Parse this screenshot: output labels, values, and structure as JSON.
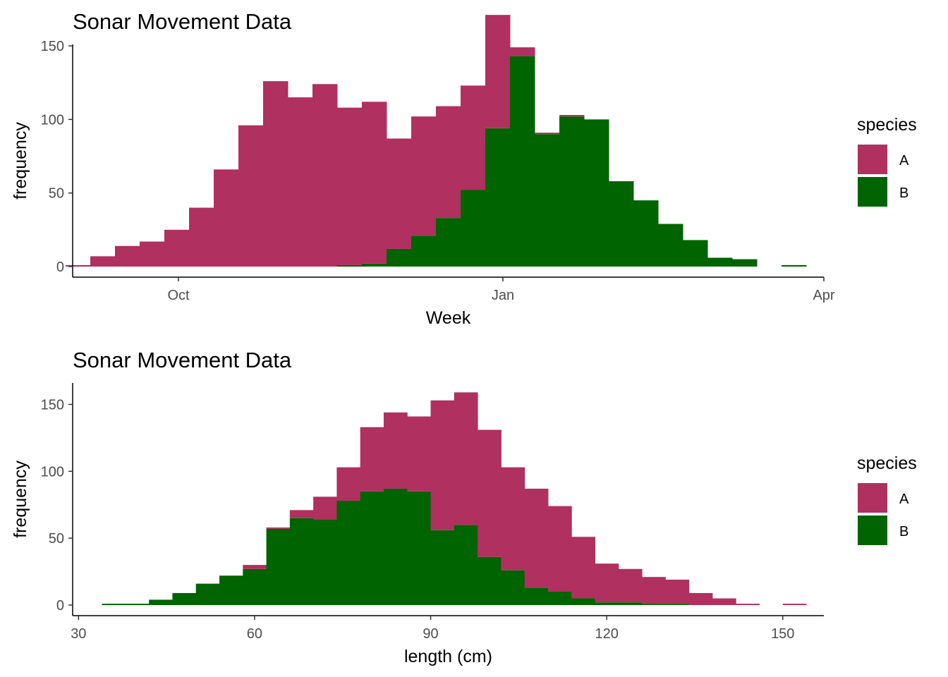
{
  "colors": {
    "A": "#b03060",
    "B": "#006400"
  },
  "chart_data": [
    {
      "type": "bar",
      "stacked": true,
      "title": "Sonar Movement Data",
      "xlabel": "Week",
      "ylabel": "frequency",
      "x_axis_kind": "date",
      "xlim": [
        "2023-09-01",
        "2024-04-01"
      ],
      "ylim": [
        0,
        150
      ],
      "xticks": [
        {
          "value": "2023-10-01",
          "label": "Oct"
        },
        {
          "value": "2024-01-01",
          "label": "Jan"
        },
        {
          "value": "2024-04-01",
          "label": "Apr"
        }
      ],
      "yticks": [
        0,
        50,
        100,
        150
      ],
      "bins_start": [
        "2023-08-30",
        "2023-09-06",
        "2023-09-13",
        "2023-09-20",
        "2023-09-27",
        "2023-10-04",
        "2023-10-11",
        "2023-10-18",
        "2023-10-25",
        "2023-11-01",
        "2023-11-08",
        "2023-11-15",
        "2023-11-22",
        "2023-11-29",
        "2023-12-06",
        "2023-12-13",
        "2023-12-20",
        "2023-12-27",
        "2024-01-03",
        "2024-01-10",
        "2024-01-17",
        "2024-01-24",
        "2024-01-31",
        "2024-02-07",
        "2024-02-14",
        "2024-02-21",
        "2024-02-28",
        "2024-03-06",
        "2024-03-13",
        "2024-03-20",
        "2024-03-27"
      ],
      "bins_end": [
        "2023-09-06",
        "2023-09-13",
        "2023-09-20",
        "2023-09-27",
        "2023-10-04",
        "2023-10-11",
        "2023-10-18",
        "2023-10-25",
        "2023-11-01",
        "2023-11-08",
        "2023-11-15",
        "2023-11-22",
        "2023-11-29",
        "2023-12-06",
        "2023-12-13",
        "2023-12-20",
        "2023-12-27",
        "2024-01-03",
        "2024-01-10",
        "2024-01-17",
        "2024-01-24",
        "2024-01-31",
        "2024-02-07",
        "2024-02-14",
        "2024-02-21",
        "2024-02-28",
        "2024-03-06",
        "2024-03-13",
        "2024-03-20",
        "2024-03-27",
        "2024-04-03"
      ],
      "series": [
        {
          "name": "A",
          "values": [
            1,
            7,
            14,
            17,
            25,
            40,
            66,
            96,
            126,
            115,
            124,
            107,
            110,
            75,
            81,
            76,
            71,
            77,
            6,
            1,
            1,
            0,
            0,
            0,
            0,
            0,
            0,
            0,
            0,
            0,
            0
          ]
        },
        {
          "name": "B",
          "values": [
            0,
            0,
            0,
            0,
            0,
            0,
            0,
            0,
            0,
            0,
            0,
            1,
            2,
            12,
            21,
            33,
            52,
            94,
            143,
            90,
            102,
            100,
            58,
            45,
            29,
            18,
            6,
            5,
            0,
            1,
            0
          ]
        }
      ],
      "legend": {
        "title": "species",
        "position": "right",
        "entries": [
          "A",
          "B"
        ]
      }
    },
    {
      "type": "bar",
      "stacked": true,
      "title": "Sonar Movement Data",
      "xlabel": "length (cm)",
      "ylabel": "frequency",
      "xlim": [
        29,
        157
      ],
      "ylim": [
        0,
        165
      ],
      "xticks": [
        {
          "value": 30,
          "label": "30"
        },
        {
          "value": 60,
          "label": "60"
        },
        {
          "value": 90,
          "label": "90"
        },
        {
          "value": 120,
          "label": "120"
        },
        {
          "value": 150,
          "label": "150"
        }
      ],
      "yticks": [
        0,
        50,
        100,
        150
      ],
      "bins_start": [
        34,
        38,
        42,
        46,
        50,
        54,
        58,
        62,
        66,
        70,
        74,
        78,
        82,
        86,
        90,
        94,
        98,
        102,
        106,
        110,
        114,
        118,
        122,
        126,
        130,
        134,
        138,
        142,
        146,
        150
      ],
      "bins_end": [
        38,
        42,
        46,
        50,
        54,
        58,
        62,
        66,
        70,
        74,
        78,
        82,
        86,
        90,
        94,
        98,
        102,
        106,
        110,
        114,
        118,
        122,
        126,
        130,
        134,
        138,
        142,
        146,
        150,
        154
      ],
      "series": [
        {
          "name": "A",
          "values": [
            0,
            0,
            0,
            0,
            0,
            0,
            3,
            1,
            6,
            17,
            25,
            48,
            57,
            56,
            97,
            99,
            95,
            77,
            74,
            64,
            46,
            29,
            25,
            20,
            18,
            9,
            5,
            1,
            0,
            1
          ]
        },
        {
          "name": "B",
          "values": [
            1,
            1,
            4,
            9,
            16,
            22,
            27,
            57,
            65,
            64,
            78,
            85,
            87,
            85,
            56,
            60,
            36,
            26,
            13,
            10,
            5,
            2,
            2,
            1,
            1,
            0,
            0,
            0,
            0,
            0
          ]
        }
      ],
      "legend": {
        "title": "species",
        "position": "right",
        "entries": [
          "A",
          "B"
        ]
      }
    }
  ]
}
